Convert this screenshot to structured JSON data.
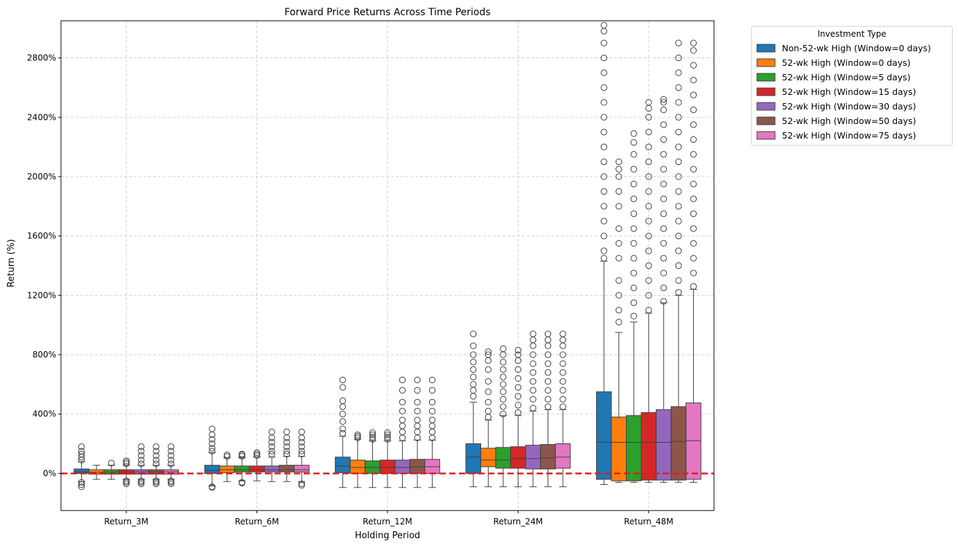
{
  "chart_data": {
    "type": "box",
    "title": "Forward Price Returns Across Time Periods",
    "xlabel": "Holding Period",
    "ylabel": "Return (%)",
    "categories": [
      "Return_3M",
      "Return_6M",
      "Return_12M",
      "Return_24M",
      "Return_48M"
    ],
    "ylim": [
      -250,
      3050
    ],
    "yticks": [
      0,
      400,
      800,
      1200,
      1600,
      2000,
      2400,
      2800
    ],
    "ytick_labels": [
      "0%",
      "400%",
      "800%",
      "1200%",
      "1600%",
      "2000%",
      "2400%",
      "2800%"
    ],
    "grid": true,
    "reference_line": {
      "y": 0,
      "color": "#e31a1c",
      "style": "dashed"
    },
    "legend": {
      "title": "Investment Type",
      "placement": "outside-top-right"
    },
    "series": [
      {
        "name": "Non-52-wk High (Window=0 days)",
        "color": "#1f77b4",
        "boxes": [
          {
            "q1": 0,
            "median": 10,
            "q3": 30,
            "whislo": -55,
            "whishi": 80,
            "outliers_low": [
              -60,
              -75,
              -90
            ],
            "outliers_high": [
              90,
              110,
              130,
              150,
              180
            ]
          },
          {
            "q1": 0,
            "median": 20,
            "q3": 55,
            "whislo": -85,
            "whishi": 140,
            "outliers_low": [
              -90,
              -95
            ],
            "outliers_high": [
              150,
              170,
              200,
              230,
              260,
              300
            ]
          },
          {
            "q1": 5,
            "median": 50,
            "q3": 110,
            "whislo": -95,
            "whishi": 250,
            "outliers_low": [],
            "outliers_high": [
              270,
              300,
              350,
              400,
              450,
              490,
              580,
              630
            ]
          },
          {
            "q1": 0,
            "median": 110,
            "q3": 200,
            "whislo": -90,
            "whishi": 480,
            "outliers_low": [],
            "outliers_high": [
              520,
              560,
              600,
              650,
              700,
              750,
              800,
              860,
              940
            ]
          },
          {
            "q1": -40,
            "median": 210,
            "q3": 550,
            "whislo": -75,
            "whishi": 1430,
            "outliers_low": [],
            "outliers_high": [
              1450,
              1500,
              1600,
              1700,
              1800,
              1900,
              2000,
              2100,
              2200,
              2300,
              2400,
              2500,
              2600,
              2700,
              2800,
              2900,
              2980,
              3020
            ]
          }
        ]
      },
      {
        "name": "52-wk High (Window=0 days)",
        "color": "#ff7f0e",
        "boxes": [
          {
            "q1": -5,
            "median": 8,
            "q3": 25,
            "whislo": -40,
            "whishi": 55,
            "outliers_low": [],
            "outliers_high": []
          },
          {
            "q1": 5,
            "median": 25,
            "q3": 50,
            "whislo": -55,
            "whishi": 105,
            "outliers_low": [],
            "outliers_high": [
              115,
              125
            ]
          },
          {
            "q1": 0,
            "median": 40,
            "q3": 90,
            "whislo": -95,
            "whishi": 230,
            "outliers_low": [],
            "outliers_high": [
              240,
              250,
              260
            ]
          },
          {
            "q1": 45,
            "median": 90,
            "q3": 170,
            "whislo": -90,
            "whishi": 360,
            "outliers_low": [],
            "outliers_high": [
              380,
              420,
              480,
              550,
              620,
              700,
              760,
              800,
              820
            ]
          },
          {
            "q1": -50,
            "median": 210,
            "q3": 380,
            "whislo": -60,
            "whishi": 950,
            "outliers_low": [],
            "outliers_high": [
              1020,
              1100,
              1200,
              1300,
              1450,
              1550,
              1650,
              1800,
              1900,
              2000,
              2050,
              2100
            ]
          }
        ]
      },
      {
        "name": "52-wk High (Window=5 days)",
        "color": "#2ca02c",
        "boxes": [
          {
            "q1": -5,
            "median": 10,
            "q3": 25,
            "whislo": -40,
            "whishi": 55,
            "outliers_low": [],
            "outliers_high": [
              70
            ]
          },
          {
            "q1": 10,
            "median": 25,
            "q3": 50,
            "whislo": -50,
            "whishi": 105,
            "outliers_low": [
              -60,
              -65
            ],
            "outliers_high": [
              115,
              125,
              130
            ]
          },
          {
            "q1": 0,
            "median": 40,
            "q3": 85,
            "whislo": -95,
            "whishi": 220,
            "outliers_low": [],
            "outliers_high": [
              230,
              245,
              260,
              275
            ]
          },
          {
            "q1": 35,
            "median": 90,
            "q3": 175,
            "whislo": -90,
            "whishi": 390,
            "outliers_low": [],
            "outliers_high": [
              400,
              450,
              500,
              550,
              600,
              650,
              700,
              750,
              800,
              840
            ]
          },
          {
            "q1": -50,
            "median": 210,
            "q3": 390,
            "whislo": -60,
            "whishi": 1020,
            "outliers_low": [],
            "outliers_high": [
              1060,
              1150,
              1250,
              1350,
              1450,
              1550,
              1650,
              1750,
              1850,
              1950,
              2050,
              2150,
              2230,
              2290
            ]
          }
        ]
      },
      {
        "name": "52-wk High (Window=15 days)",
        "color": "#d62728",
        "boxes": [
          {
            "q1": -5,
            "median": 10,
            "q3": 25,
            "whislo": -40,
            "whishi": 55,
            "outliers_low": [
              -50,
              -60,
              -70
            ],
            "outliers_high": [
              65,
              75,
              85
            ]
          },
          {
            "q1": 10,
            "median": 25,
            "q3": 50,
            "whislo": -50,
            "whishi": 110,
            "outliers_low": [],
            "outliers_high": [
              120,
              130,
              140
            ]
          },
          {
            "q1": 0,
            "median": 40,
            "q3": 90,
            "whislo": -95,
            "whishi": 220,
            "outliers_low": [],
            "outliers_high": [
              230,
              245,
              260,
              275
            ]
          },
          {
            "q1": 35,
            "median": 100,
            "q3": 180,
            "whislo": -90,
            "whishi": 390,
            "outliers_low": [],
            "outliers_high": [
              410,
              460,
              520,
              580,
              640,
              700,
              760,
              800,
              830
            ]
          },
          {
            "q1": -45,
            "median": 210,
            "q3": 410,
            "whislo": -60,
            "whishi": 1080,
            "outliers_low": [],
            "outliers_high": [
              1100,
              1200,
              1300,
              1400,
              1500,
              1600,
              1700,
              1800,
              1900,
              2000,
              2100,
              2200,
              2300,
              2400,
              2460,
              2500
            ]
          }
        ]
      },
      {
        "name": "52-wk High (Window=30 days)",
        "color": "#9467bd",
        "boxes": [
          {
            "q1": -5,
            "median": 10,
            "q3": 25,
            "whislo": -40,
            "whishi": 55,
            "outliers_low": [
              -50,
              -60,
              -70
            ],
            "outliers_high": [
              65,
              90,
              120,
              150,
              180
            ]
          },
          {
            "q1": 10,
            "median": 25,
            "q3": 50,
            "whislo": -55,
            "whishi": 110,
            "outliers_low": [],
            "outliers_high": [
              130,
              150,
              180,
              210,
              240,
              280
            ]
          },
          {
            "q1": 0,
            "median": 40,
            "q3": 90,
            "whislo": -95,
            "whishi": 220,
            "outliers_low": [],
            "outliers_high": [
              240,
              280,
              320,
              360,
              420,
              480,
              560,
              630
            ]
          },
          {
            "q1": 30,
            "median": 100,
            "q3": 190,
            "whislo": -90,
            "whishi": 420,
            "outliers_low": [],
            "outliers_high": [
              440,
              500,
              560,
              620,
              680,
              740,
              800,
              860,
              900,
              940
            ]
          },
          {
            "q1": -45,
            "median": 210,
            "q3": 430,
            "whislo": -60,
            "whishi": 1150,
            "outliers_low": [],
            "outliers_high": [
              1160,
              1250,
              1350,
              1450,
              1550,
              1650,
              1750,
              1850,
              1950,
              2050,
              2150,
              2250,
              2350,
              2450,
              2500,
              2520
            ]
          }
        ]
      },
      {
        "name": "52-wk High (Window=50 days)",
        "color": "#8c564b",
        "boxes": [
          {
            "q1": -5,
            "median": 10,
            "q3": 25,
            "whislo": -40,
            "whishi": 55,
            "outliers_low": [
              -50,
              -60,
              -70
            ],
            "outliers_high": [
              65,
              90,
              120,
              150,
              180
            ]
          },
          {
            "q1": 10,
            "median": 25,
            "q3": 55,
            "whislo": -55,
            "whishi": 115,
            "outliers_low": [],
            "outliers_high": [
              130,
              150,
              180,
              210,
              240,
              280
            ]
          },
          {
            "q1": 0,
            "median": 45,
            "q3": 95,
            "whislo": -95,
            "whishi": 225,
            "outliers_low": [],
            "outliers_high": [
              240,
              280,
              320,
              360,
              420,
              480,
              560,
              630
            ]
          },
          {
            "q1": 30,
            "median": 105,
            "q3": 195,
            "whislo": -90,
            "whishi": 430,
            "outliers_low": [],
            "outliers_high": [
              450,
              500,
              560,
              620,
              680,
              740,
              800,
              860,
              900,
              940
            ]
          },
          {
            "q1": -45,
            "median": 215,
            "q3": 450,
            "whislo": -60,
            "whishi": 1200,
            "outliers_low": [],
            "outliers_high": [
              1220,
              1300,
              1400,
              1500,
              1600,
              1700,
              1800,
              1900,
              2000,
              2100,
              2200,
              2300,
              2400,
              2500,
              2600,
              2700,
              2800,
              2900
            ]
          }
        ]
      },
      {
        "name": "52-wk High (Window=75 days)",
        "color": "#e377c2",
        "boxes": [
          {
            "q1": -5,
            "median": 10,
            "q3": 25,
            "whislo": -40,
            "whishi": 55,
            "outliers_low": [
              -50,
              -60,
              -70
            ],
            "outliers_high": [
              65,
              90,
              120,
              150,
              180
            ]
          },
          {
            "q1": 10,
            "median": 25,
            "q3": 55,
            "whislo": -55,
            "whishi": 115,
            "outliers_low": [
              -70,
              -80
            ],
            "outliers_high": [
              130,
              150,
              180,
              210,
              240,
              280
            ]
          },
          {
            "q1": 0,
            "median": 45,
            "q3": 95,
            "whislo": -95,
            "whishi": 225,
            "outliers_low": [],
            "outliers_high": [
              240,
              280,
              320,
              360,
              420,
              480,
              560,
              630
            ]
          },
          {
            "q1": 35,
            "median": 110,
            "q3": 200,
            "whislo": -90,
            "whishi": 430,
            "outliers_low": [],
            "outliers_high": [
              450,
              500,
              560,
              620,
              680,
              740,
              800,
              860,
              900,
              940
            ]
          },
          {
            "q1": -40,
            "median": 220,
            "q3": 475,
            "whislo": -60,
            "whishi": 1240,
            "outliers_low": [],
            "outliers_high": [
              1260,
              1350,
              1450,
              1550,
              1650,
              1750,
              1850,
              1950,
              2050,
              2150,
              2250,
              2350,
              2450,
              2550,
              2650,
              2750,
              2850,
              2900
            ]
          }
        ]
      }
    ]
  }
}
